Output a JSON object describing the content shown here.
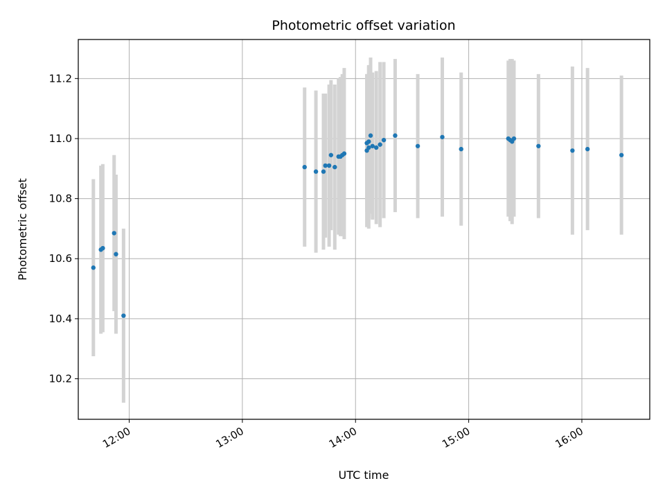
{
  "chart_data": {
    "type": "scatter",
    "title": "Photometric offset variation",
    "xlabel": "UTC time",
    "ylabel": "Photometric offset",
    "x_ticks": [
      "12:00",
      "13:00",
      "14:00",
      "15:00",
      "16:00"
    ],
    "y_ticks": [
      "10.2",
      "10.4",
      "10.6",
      "10.8",
      "11.0",
      "11.2"
    ],
    "xlim": [
      "11:33",
      "16:36"
    ],
    "ylim": [
      10.065,
      11.33
    ],
    "grid": true,
    "colors": {
      "points": "#1f77b4",
      "error_bars": "#d3d3d3"
    },
    "series": [
      {
        "points": [
          {
            "x": "11:41",
            "y": 10.57,
            "err": 0.295
          },
          {
            "x": "11:45",
            "y": 10.63,
            "err": 0.28
          },
          {
            "x": "11:46",
            "y": 10.635,
            "err": 0.28
          },
          {
            "x": "11:52",
            "y": 10.685,
            "err": 0.26
          },
          {
            "x": "11:53",
            "y": 10.615,
            "err": 0.265
          },
          {
            "x": "11:57",
            "y": 10.41,
            "err": 0.29
          },
          {
            "x": "13:33",
            "y": 10.905,
            "err": 0.265
          },
          {
            "x": "13:39",
            "y": 10.89,
            "err": 0.27
          },
          {
            "x": "13:43",
            "y": 10.89,
            "err": 0.26
          },
          {
            "x": "13:44",
            "y": 10.91,
            "err": 0.24
          },
          {
            "x": "13:46",
            "y": 10.91,
            "err": 0.27
          },
          {
            "x": "13:47",
            "y": 10.945,
            "err": 0.25
          },
          {
            "x": "13:49",
            "y": 10.905,
            "err": 0.275
          },
          {
            "x": "13:51",
            "y": 10.94,
            "err": 0.26
          },
          {
            "x": "13:52",
            "y": 10.94,
            "err": 0.265
          },
          {
            "x": "13:53",
            "y": 10.945,
            "err": 0.27
          },
          {
            "x": "13:54",
            "y": 10.95,
            "err": 0.285
          },
          {
            "x": "14:06",
            "y": 10.96,
            "err": 0.255
          },
          {
            "x": "14:06",
            "y": 10.985,
            "err": 0.23
          },
          {
            "x": "14:07",
            "y": 10.97,
            "err": 0.27
          },
          {
            "x": "14:07",
            "y": 10.99,
            "err": 0.255
          },
          {
            "x": "14:08",
            "y": 11.01,
            "err": 0.26
          },
          {
            "x": "14:09",
            "y": 10.975,
            "err": 0.245
          },
          {
            "x": "14:11",
            "y": 10.97,
            "err": 0.255
          },
          {
            "x": "14:13",
            "y": 10.98,
            "err": 0.275
          },
          {
            "x": "14:15",
            "y": 10.995,
            "err": 0.26
          },
          {
            "x": "14:21",
            "y": 11.01,
            "err": 0.255
          },
          {
            "x": "14:33",
            "y": 10.975,
            "err": 0.24
          },
          {
            "x": "14:46",
            "y": 11.005,
            "err": 0.265
          },
          {
            "x": "14:56",
            "y": 10.965,
            "err": 0.255
          },
          {
            "x": "15:21",
            "y": 11.0,
            "err": 0.26
          },
          {
            "x": "15:22",
            "y": 10.995,
            "err": 0.27
          },
          {
            "x": "15:23",
            "y": 10.99,
            "err": 0.275
          },
          {
            "x": "15:24",
            "y": 11.0,
            "err": 0.26
          },
          {
            "x": "15:37",
            "y": 10.975,
            "err": 0.24
          },
          {
            "x": "15:55",
            "y": 10.96,
            "err": 0.28
          },
          {
            "x": "16:03",
            "y": 10.965,
            "err": 0.27
          },
          {
            "x": "16:21",
            "y": 10.945,
            "err": 0.265
          }
        ]
      }
    ]
  }
}
